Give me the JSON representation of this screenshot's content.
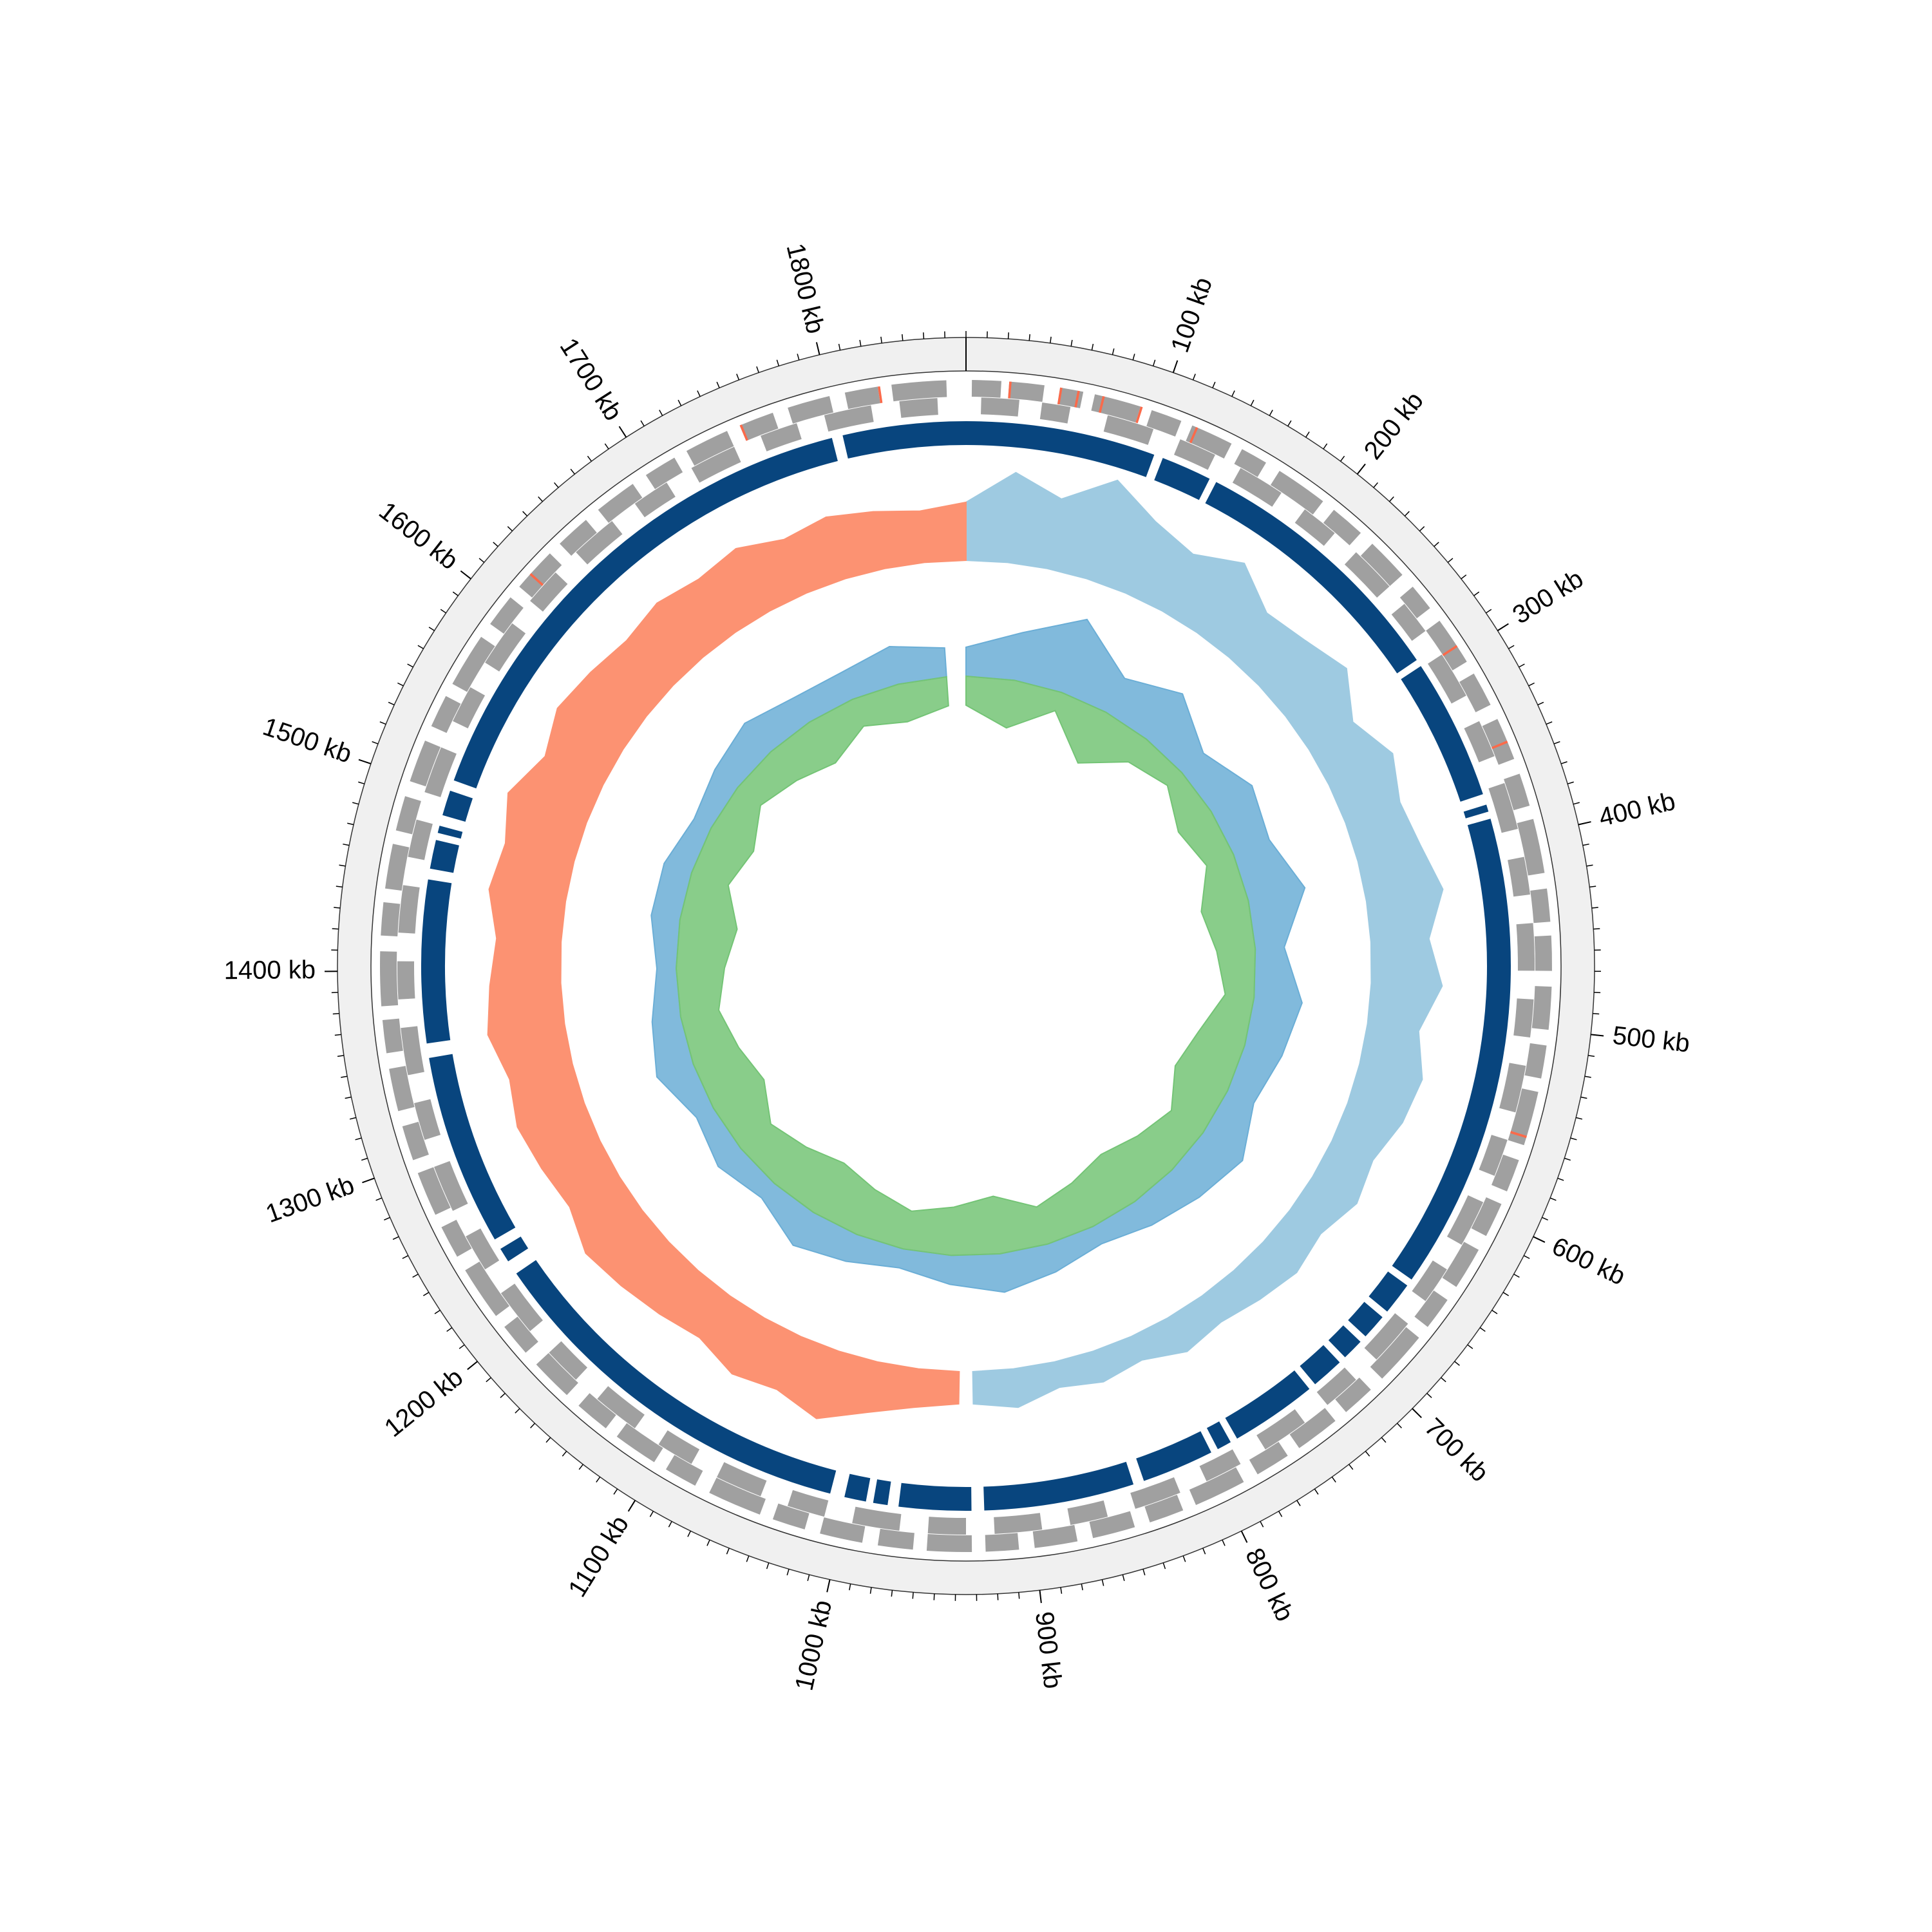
{
  "chart_data": {
    "type": "circular-genome",
    "genome_length": 1870,
    "ticks": [
      {
        "value": 100,
        "label": "100 kb"
      },
      {
        "value": 200,
        "label": "200 kb"
      },
      {
        "value": 300,
        "label": "300 kb"
      },
      {
        "value": 400,
        "label": "400 kb"
      },
      {
        "value": 500,
        "label": "500 kb"
      },
      {
        "value": 600,
        "label": "600 kb"
      },
      {
        "value": 700,
        "label": "700 kb"
      },
      {
        "value": 800,
        "label": "800 kb"
      },
      {
        "value": 900,
        "label": "900 kb"
      },
      {
        "value": 1000,
        "label": "1000 kb"
      },
      {
        "value": 1100,
        "label": "1100 kb"
      },
      {
        "value": 1200,
        "label": "1200 kb"
      },
      {
        "value": 1300,
        "label": "1300 kb"
      },
      {
        "value": 1400,
        "label": "1400 kb"
      },
      {
        "value": 1500,
        "label": "1500 kb"
      },
      {
        "value": 1600,
        "label": "1600 kb"
      },
      {
        "value": 1700,
        "label": "1700 kb"
      },
      {
        "value": 1800,
        "label": "1800 kb"
      }
    ],
    "minor_tick_step": 10,
    "genes_forward": {
      "color": "#a0a0a0",
      "intervals": [
        [
          3,
          18
        ],
        [
          22,
          40
        ],
        [
          48,
          60
        ],
        [
          66,
          90
        ],
        [
          96,
          112
        ],
        [
          118,
          140
        ],
        [
          146,
          160
        ],
        [
          168,
          195
        ],
        [
          202,
          220
        ],
        [
          228,
          250
        ],
        [
          258,
          272
        ],
        [
          280,
          305
        ],
        [
          312,
          330
        ],
        [
          338,
          360
        ],
        [
          368,
          385
        ],
        [
          392,
          420
        ],
        [
          428,
          445
        ],
        [
          452,
          470
        ],
        [
          478,
          500
        ],
        [
          508,
          525
        ],
        [
          532,
          560
        ],
        [
          568,
          585
        ],
        [
          592,
          610
        ],
        [
          618,
          640
        ],
        [
          648,
          665
        ],
        [
          672,
          700
        ],
        [
          708,
          725
        ],
        [
          732,
          755
        ],
        [
          762,
          780
        ],
        [
          788,
          815
        ],
        [
          822,
          840
        ],
        [
          848,
          870
        ],
        [
          878,
          900
        ],
        [
          908,
          925
        ],
        [
          932,
          955
        ],
        [
          962,
          980
        ],
        [
          988,
          1010
        ],
        [
          1018,
          1035
        ],
        [
          1042,
          1070
        ],
        [
          1078,
          1095
        ],
        [
          1102,
          1125
        ],
        [
          1132,
          1150
        ],
        [
          1158,
          1180
        ],
        [
          1188,
          1205
        ],
        [
          1212,
          1240
        ],
        [
          1248,
          1265
        ],
        [
          1272,
          1295
        ],
        [
          1302,
          1320
        ],
        [
          1328,
          1350
        ],
        [
          1358,
          1375
        ],
        [
          1382,
          1410
        ],
        [
          1418,
          1435
        ],
        [
          1442,
          1465
        ],
        [
          1472,
          1490
        ],
        [
          1498,
          1520
        ],
        [
          1528,
          1545
        ],
        [
          1552,
          1580
        ],
        [
          1588,
          1605
        ],
        [
          1612,
          1635
        ],
        [
          1642,
          1660
        ],
        [
          1668,
          1690
        ],
        [
          1698,
          1715
        ],
        [
          1722,
          1745
        ],
        [
          1752,
          1770
        ],
        [
          1778,
          1800
        ],
        [
          1808,
          1825
        ],
        [
          1832,
          1860
        ]
      ]
    },
    "genes_reverse": {
      "color": "#a0a0a0",
      "intervals": [
        [
          8,
          28
        ],
        [
          40,
          55
        ],
        [
          75,
          100
        ],
        [
          115,
          135
        ],
        [
          150,
          175
        ],
        [
          190,
          210
        ],
        [
          225,
          250
        ],
        [
          262,
          280
        ],
        [
          295,
          320
        ],
        [
          335,
          355
        ],
        [
          370,
          395
        ],
        [
          410,
          430
        ],
        [
          445,
          470
        ],
        [
          485,
          505
        ],
        [
          520,
          545
        ],
        [
          560,
          580
        ],
        [
          595,
          620
        ],
        [
          635,
          655
        ],
        [
          670,
          695
        ],
        [
          710,
          730
        ],
        [
          745,
          770
        ],
        [
          785,
          805
        ],
        [
          820,
          845
        ],
        [
          860,
          880
        ],
        [
          895,
          920
        ],
        [
          935,
          955
        ],
        [
          970,
          995
        ],
        [
          1010,
          1030
        ],
        [
          1045,
          1070
        ],
        [
          1085,
          1105
        ],
        [
          1120,
          1145
        ],
        [
          1160,
          1180
        ],
        [
          1195,
          1220
        ],
        [
          1235,
          1255
        ],
        [
          1270,
          1295
        ],
        [
          1310,
          1330
        ],
        [
          1345,
          1370
        ],
        [
          1385,
          1405
        ],
        [
          1420,
          1445
        ],
        [
          1460,
          1480
        ],
        [
          1495,
          1520
        ],
        [
          1535,
          1555
        ],
        [
          1570,
          1595
        ],
        [
          1610,
          1630
        ],
        [
          1645,
          1670
        ],
        [
          1685,
          1705
        ],
        [
          1720,
          1745
        ],
        [
          1760,
          1780
        ],
        [
          1795,
          1820
        ],
        [
          1835,
          1855
        ]
      ]
    },
    "rna_features": {
      "color": "#fb6a4a",
      "positions": [
        22,
        48,
        57,
        70,
        90,
        120,
        295,
        350,
        555,
        1620,
        1752,
        1825
      ]
    },
    "blocks": {
      "color": "#08457e",
      "intervals": [
        [
          0,
          105
        ],
        [
          110,
          138
        ],
        [
          142,
          290
        ],
        [
          294,
          372
        ],
        [
          378,
          382
        ],
        [
          386,
          650
        ],
        [
          654,
          672
        ],
        [
          676,
          690
        ],
        [
          694,
          706
        ],
        [
          710,
          728
        ],
        [
          732,
          780
        ],
        [
          784,
          792
        ],
        [
          796,
          836
        ],
        [
          842,
          925
        ],
        [
          932,
          972
        ],
        [
          978,
          986
        ],
        [
          990,
          1002
        ],
        [
          1010,
          1224
        ],
        [
          1232,
          1240
        ],
        [
          1246,
          1352
        ],
        [
          1360,
          1450
        ],
        [
          1456,
          1472
        ],
        [
          1476,
          1480
        ],
        [
          1486,
          1500
        ],
        [
          1506,
          1796
        ],
        [
          1802,
          1870
        ]
      ]
    },
    "ring1": {
      "rlim": [
        0,
        1
      ],
      "series": [
        {
          "color": "#9ecae1",
          "x": [
            0,
            30,
            60,
            90,
            120,
            150,
            180,
            210,
            240,
            270,
            300,
            330,
            360,
            390,
            420,
            450,
            480,
            510,
            540,
            570,
            600,
            630,
            660,
            690,
            720,
            750,
            780,
            810,
            840,
            870,
            900,
            930
          ],
          "values": [
            0.45,
            0.7,
            0.55,
            0.8,
            0.6,
            0.5,
            0.65,
            0.45,
            0.5,
            0.6,
            0.4,
            0.55,
            0.45,
            0.5,
            0.6,
            0.45,
            0.55,
            0.4,
            0.5,
            0.45,
            0.35,
            0.4,
            0.3,
            0.35,
            0.3,
            0.25,
            0.3,
            0.2,
            0.25,
            0.2,
            0.3,
            0.25
          ]
        },
        {
          "color": "#fc9272",
          "x": [
            940,
            970,
            1000,
            1030,
            1060,
            1090,
            1120,
            1150,
            1180,
            1210,
            1240,
            1270,
            1300,
            1330,
            1360,
            1390,
            1420,
            1450,
            1480,
            1510,
            1540,
            1570,
            1600,
            1630,
            1660,
            1690,
            1720,
            1750,
            1780,
            1810,
            1840,
            1870
          ],
          "values": [
            0.25,
            0.3,
            0.4,
            0.55,
            0.45,
            0.5,
            0.4,
            0.45,
            0.5,
            0.55,
            0.45,
            0.5,
            0.55,
            0.5,
            0.6,
            0.55,
            0.5,
            0.6,
            0.55,
            0.65,
            0.5,
            0.6,
            0.55,
            0.5,
            0.55,
            0.5,
            0.55,
            0.45,
            0.5,
            0.45,
            0.4,
            0.45
          ]
        }
      ]
    },
    "ring2": {
      "rlim": [
        -1,
        1
      ],
      "x": [
        0,
        50,
        100,
        150,
        200,
        250,
        300,
        350,
        400,
        450,
        500,
        550,
        600,
        650,
        700,
        750,
        800,
        850,
        900,
        950,
        1000,
        1050,
        1100,
        1150,
        1200,
        1250,
        1300,
        1350,
        1400,
        1450,
        1500,
        1550,
        1600,
        1650,
        1700,
        1750,
        1800,
        1850
      ],
      "series": [
        {
          "color": "#6baed6",
          "values": [
            0.3,
            0.5,
            0.8,
            0.4,
            0.6,
            0.3,
            0.5,
            0.4,
            0.6,
            0.3,
            0.5,
            0.4,
            0.3,
            0.5,
            0.4,
            0.3,
            0.2,
            0.3,
            0.4,
            0.3,
            0.2,
            0.3,
            0.4,
            0.2,
            0.3,
            0.2,
            0.4,
            0.3,
            0.2,
            0.3,
            0.3,
            0.2,
            0.3,
            0.4,
            0.3,
            0.3,
            0.4,
            0.3
          ]
        },
        {
          "color": "#74c476",
          "values": [
            -0.3,
            -0.5,
            -0.2,
            -0.6,
            -0.3,
            -0.2,
            -0.4,
            -0.3,
            -0.5,
            -0.4,
            -0.3,
            -0.5,
            -0.6,
            -0.4,
            -0.5,
            -0.6,
            -0.5,
            -0.4,
            -0.6,
            -0.5,
            -0.4,
            -0.5,
            -0.6,
            -0.5,
            -0.4,
            -0.6,
            -0.5,
            -0.4,
            -0.5,
            -0.6,
            -0.4,
            -0.5,
            -0.3,
            -0.4,
            -0.5,
            -0.3,
            -0.4,
            -0.3
          ]
        }
      ]
    }
  }
}
